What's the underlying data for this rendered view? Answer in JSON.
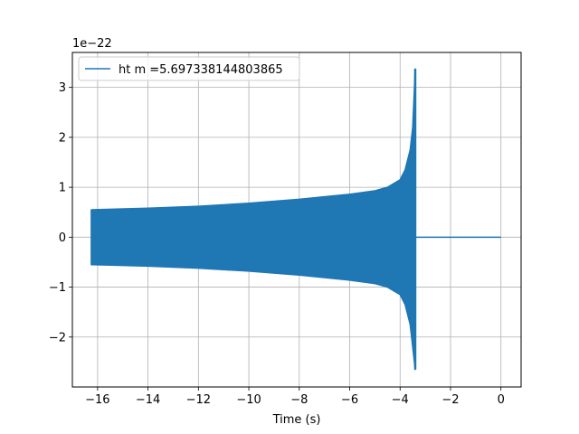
{
  "chart_data": {
    "type": "line",
    "title": "",
    "xlabel": "Time (s)",
    "ylabel": "",
    "y_offset_text": "1e−22",
    "y_scale": 1e-22,
    "xlim": [
      -17.0,
      0.8
    ],
    "ylim": [
      -3.0,
      3.7
    ],
    "xticks": [
      -16,
      -14,
      -12,
      -10,
      -8,
      -6,
      -4,
      -2,
      0
    ],
    "xtick_labels": [
      "−16",
      "−14",
      "−12",
      "−10",
      "−8",
      "−6",
      "−4",
      "−2",
      "0"
    ],
    "yticks": [
      -2,
      -1,
      0,
      1,
      2,
      3
    ],
    "ytick_labels": [
      "−2",
      "−1",
      "0",
      "1",
      "2",
      "3"
    ],
    "grid": true,
    "legend_position": "top-left",
    "series": [
      {
        "name": "ht m =5.697338144803865",
        "color": "#1f77b4",
        "signal_start": -16.25,
        "merger_time": -3.4,
        "end_time": 0.0,
        "initial_amplitude": 0.55,
        "peak_positive": 3.37,
        "peak_negative": -2.65,
        "envelope": [
          {
            "t": -16.25,
            "upper": 0.55,
            "lower": -0.55
          },
          {
            "t": -14.0,
            "upper": 0.58,
            "lower": -0.58
          },
          {
            "t": -12.0,
            "upper": 0.62,
            "lower": -0.62
          },
          {
            "t": -10.0,
            "upper": 0.68,
            "lower": -0.68
          },
          {
            "t": -8.0,
            "upper": 0.76,
            "lower": -0.76
          },
          {
            "t": -6.0,
            "upper": 0.86,
            "lower": -0.86
          },
          {
            "t": -5.0,
            "upper": 0.93,
            "lower": -0.93
          },
          {
            "t": -4.5,
            "upper": 1.0,
            "lower": -1.0
          },
          {
            "t": -4.0,
            "upper": 1.15,
            "lower": -1.15
          },
          {
            "t": -3.8,
            "upper": 1.35,
            "lower": -1.35
          },
          {
            "t": -3.6,
            "upper": 1.75,
            "lower": -1.75
          },
          {
            "t": -3.5,
            "upper": 2.2,
            "lower": -2.2
          },
          {
            "t": -3.4,
            "upper": 3.37,
            "lower": -2.65
          }
        ]
      }
    ]
  }
}
